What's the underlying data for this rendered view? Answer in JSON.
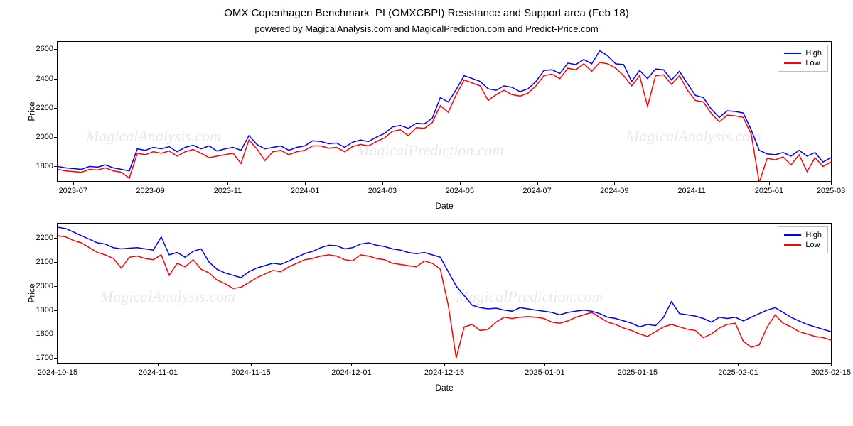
{
  "title": "OMX Copenhagen Benchmark_PI (OMXCBPI) Resistance and Support area (Feb 18)",
  "subtitle": "powered by MagicalAnalysis.com and MagicalPrediction.com and Predict-Price.com",
  "watermark_texts": [
    "MagicalAnalysis.com",
    "MagicalPrediction.com"
  ],
  "legend": {
    "high": "High",
    "low": "Low"
  },
  "colors": {
    "high": "#0000ff",
    "low": "#ff0000",
    "border": "#000000",
    "background": "#ffffff",
    "watermark": "#e8e8e8",
    "legend_border": "#c0c0c0"
  },
  "chart_top": {
    "type": "line",
    "ylabel": "Price",
    "xlabel": "Date",
    "ylim": [
      1700,
      2650
    ],
    "yticks": [
      1800,
      2000,
      2200,
      2400,
      2600
    ],
    "xlim": [
      0,
      100
    ],
    "xticks": [
      {
        "pos": 2,
        "label": "2023-07"
      },
      {
        "pos": 12,
        "label": "2023-09"
      },
      {
        "pos": 22,
        "label": "2023-11"
      },
      {
        "pos": 32,
        "label": "2024-01"
      },
      {
        "pos": 42,
        "label": "2024-03"
      },
      {
        "pos": 52,
        "label": "2024-05"
      },
      {
        "pos": 62,
        "label": "2024-07"
      },
      {
        "pos": 72,
        "label": "2024-09"
      },
      {
        "pos": 82,
        "label": "2024-11"
      },
      {
        "pos": 92,
        "label": "2025-01"
      },
      {
        "pos": 100,
        "label": "2025-03"
      }
    ],
    "high": [
      1800,
      1790,
      1785,
      1780,
      1800,
      1795,
      1810,
      1790,
      1780,
      1770,
      1920,
      1910,
      1930,
      1920,
      1935,
      1900,
      1930,
      1945,
      1920,
      1940,
      1905,
      1920,
      1930,
      1910,
      2010,
      1950,
      1920,
      1930,
      1940,
      1910,
      1930,
      1940,
      1975,
      1970,
      1955,
      1960,
      1930,
      1965,
      1980,
      1970,
      2000,
      2025,
      2070,
      2080,
      2060,
      2095,
      2090,
      2130,
      2270,
      2240,
      2325,
      2420,
      2400,
      2380,
      2330,
      2320,
      2350,
      2340,
      2310,
      2330,
      2380,
      2455,
      2460,
      2435,
      2505,
      2495,
      2530,
      2500,
      2590,
      2555,
      2500,
      2495,
      2380,
      2455,
      2400,
      2465,
      2460,
      2390,
      2450,
      2365,
      2285,
      2270,
      2190,
      2135,
      2180,
      2175,
      2165,
      2050,
      1910,
      1885,
      1880,
      1895,
      1870,
      1910,
      1870,
      1895,
      1830,
      1860
    ],
    "low": [
      1780,
      1770,
      1765,
      1760,
      1780,
      1775,
      1790,
      1770,
      1760,
      1720,
      1890,
      1880,
      1900,
      1890,
      1905,
      1870,
      1900,
      1915,
      1890,
      1860,
      1870,
      1880,
      1890,
      1820,
      1980,
      1920,
      1840,
      1900,
      1910,
      1880,
      1900,
      1910,
      1940,
      1940,
      1925,
      1930,
      1900,
      1935,
      1950,
      1940,
      1970,
      1995,
      2040,
      2050,
      2010,
      2065,
      2060,
      2100,
      2215,
      2170,
      2290,
      2390,
      2370,
      2350,
      2250,
      2290,
      2320,
      2290,
      2280,
      2300,
      2350,
      2420,
      2430,
      2400,
      2470,
      2460,
      2500,
      2450,
      2510,
      2500,
      2470,
      2420,
      2350,
      2420,
      2210,
      2420,
      2425,
      2360,
      2420,
      2320,
      2250,
      2240,
      2160,
      2105,
      2150,
      2145,
      2135,
      2020,
      1690,
      1855,
      1845,
      1865,
      1810,
      1880,
      1765,
      1860,
      1800,
      1830
    ]
  },
  "chart_bottom": {
    "type": "line",
    "ylabel": "Price",
    "xlabel": "Date",
    "ylim": [
      1680,
      2260
    ],
    "yticks": [
      1700,
      1800,
      1900,
      2000,
      2100,
      2200
    ],
    "xlim": [
      0,
      100
    ],
    "xticks": [
      {
        "pos": 0,
        "label": "2024-10-15"
      },
      {
        "pos": 13,
        "label": "2024-11-01"
      },
      {
        "pos": 25,
        "label": "2024-11-15"
      },
      {
        "pos": 38,
        "label": "2024-12-01"
      },
      {
        "pos": 50,
        "label": "2024-12-15"
      },
      {
        "pos": 63,
        "label": "2025-01-01"
      },
      {
        "pos": 75,
        "label": "2025-01-15"
      },
      {
        "pos": 88,
        "label": "2025-02-01"
      },
      {
        "pos": 100,
        "label": "2025-02-15"
      }
    ],
    "high": [
      2245,
      2240,
      2225,
      2210,
      2195,
      2180,
      2175,
      2160,
      2155,
      2158,
      2160,
      2155,
      2150,
      2205,
      2130,
      2140,
      2120,
      2145,
      2155,
      2100,
      2070,
      2055,
      2045,
      2035,
      2060,
      2075,
      2085,
      2095,
      2090,
      2105,
      2120,
      2135,
      2145,
      2160,
      2170,
      2168,
      2155,
      2160,
      2175,
      2180,
      2170,
      2165,
      2155,
      2150,
      2140,
      2135,
      2140,
      2130,
      2120,
      2060,
      2000,
      1960,
      1920,
      1910,
      1905,
      1908,
      1900,
      1895,
      1910,
      1905,
      1900,
      1895,
      1890,
      1880,
      1890,
      1895,
      1900,
      1895,
      1885,
      1870,
      1865,
      1855,
      1845,
      1830,
      1840,
      1835,
      1870,
      1935,
      1885,
      1880,
      1875,
      1865,
      1850,
      1870,
      1865,
      1870,
      1855,
      1870,
      1885,
      1900,
      1910,
      1890,
      1870,
      1855,
      1840,
      1830,
      1820,
      1810
    ],
    "low": [
      2210,
      2205,
      2190,
      2180,
      2160,
      2140,
      2130,
      2115,
      2075,
      2120,
      2125,
      2115,
      2110,
      2130,
      2045,
      2095,
      2080,
      2110,
      2070,
      2055,
      2025,
      2010,
      1990,
      1995,
      2015,
      2035,
      2050,
      2065,
      2060,
      2080,
      2095,
      2110,
      2115,
      2125,
      2130,
      2125,
      2110,
      2105,
      2130,
      2125,
      2115,
      2110,
      2095,
      2090,
      2085,
      2080,
      2105,
      2095,
      2070,
      1920,
      1700,
      1830,
      1840,
      1815,
      1820,
      1850,
      1870,
      1865,
      1870,
      1873,
      1870,
      1865,
      1850,
      1845,
      1855,
      1870,
      1880,
      1890,
      1870,
      1850,
      1840,
      1825,
      1815,
      1800,
      1790,
      1810,
      1830,
      1840,
      1830,
      1820,
      1815,
      1785,
      1800,
      1825,
      1840,
      1845,
      1770,
      1745,
      1755,
      1830,
      1880,
      1845,
      1830,
      1810,
      1800,
      1790,
      1785,
      1775
    ]
  }
}
